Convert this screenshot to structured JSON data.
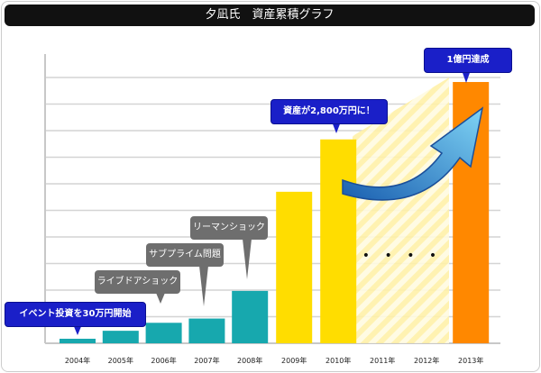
{
  "title": "夕凪氏　資産累積グラフ",
  "chart_data": {
    "type": "bar",
    "title": "夕凪氏　資産累積グラフ",
    "categories": [
      "2004年",
      "2005年",
      "2006年",
      "2007年",
      "2008年",
      "2009年",
      "2010年",
      "2011年",
      "2012年",
      "2013年"
    ],
    "values": [
      0.17,
      0.47,
      0.77,
      0.93,
      1.97,
      5.7,
      7.67,
      null,
      null,
      9.83
    ],
    "bar_colors": [
      "#17a8ae",
      "#17a8ae",
      "#17a8ae",
      "#17a8ae",
      "#17a8ae",
      "#ffdd00",
      "#ffdd00",
      null,
      null,
      "#ff8800"
    ],
    "grid": true,
    "ylim": [
      0,
      10
    ],
    "annotations": [
      {
        "label": "イベント投資を30万円開始",
        "category": "2004年",
        "style": "blue"
      },
      {
        "label": "ライブドアショック",
        "category": "2006年",
        "style": "gray"
      },
      {
        "label": "サブプライム問題",
        "category": "2007年",
        "style": "gray"
      },
      {
        "label": "リーマンショック",
        "category": "2008年",
        "style": "gray"
      },
      {
        "label": "資産が2,800万円に！",
        "category": "2010年",
        "style": "blue"
      },
      {
        "label": "1億円達成",
        "category": "2013年",
        "style": "blue"
      }
    ],
    "ellipsis": "• • • •"
  }
}
